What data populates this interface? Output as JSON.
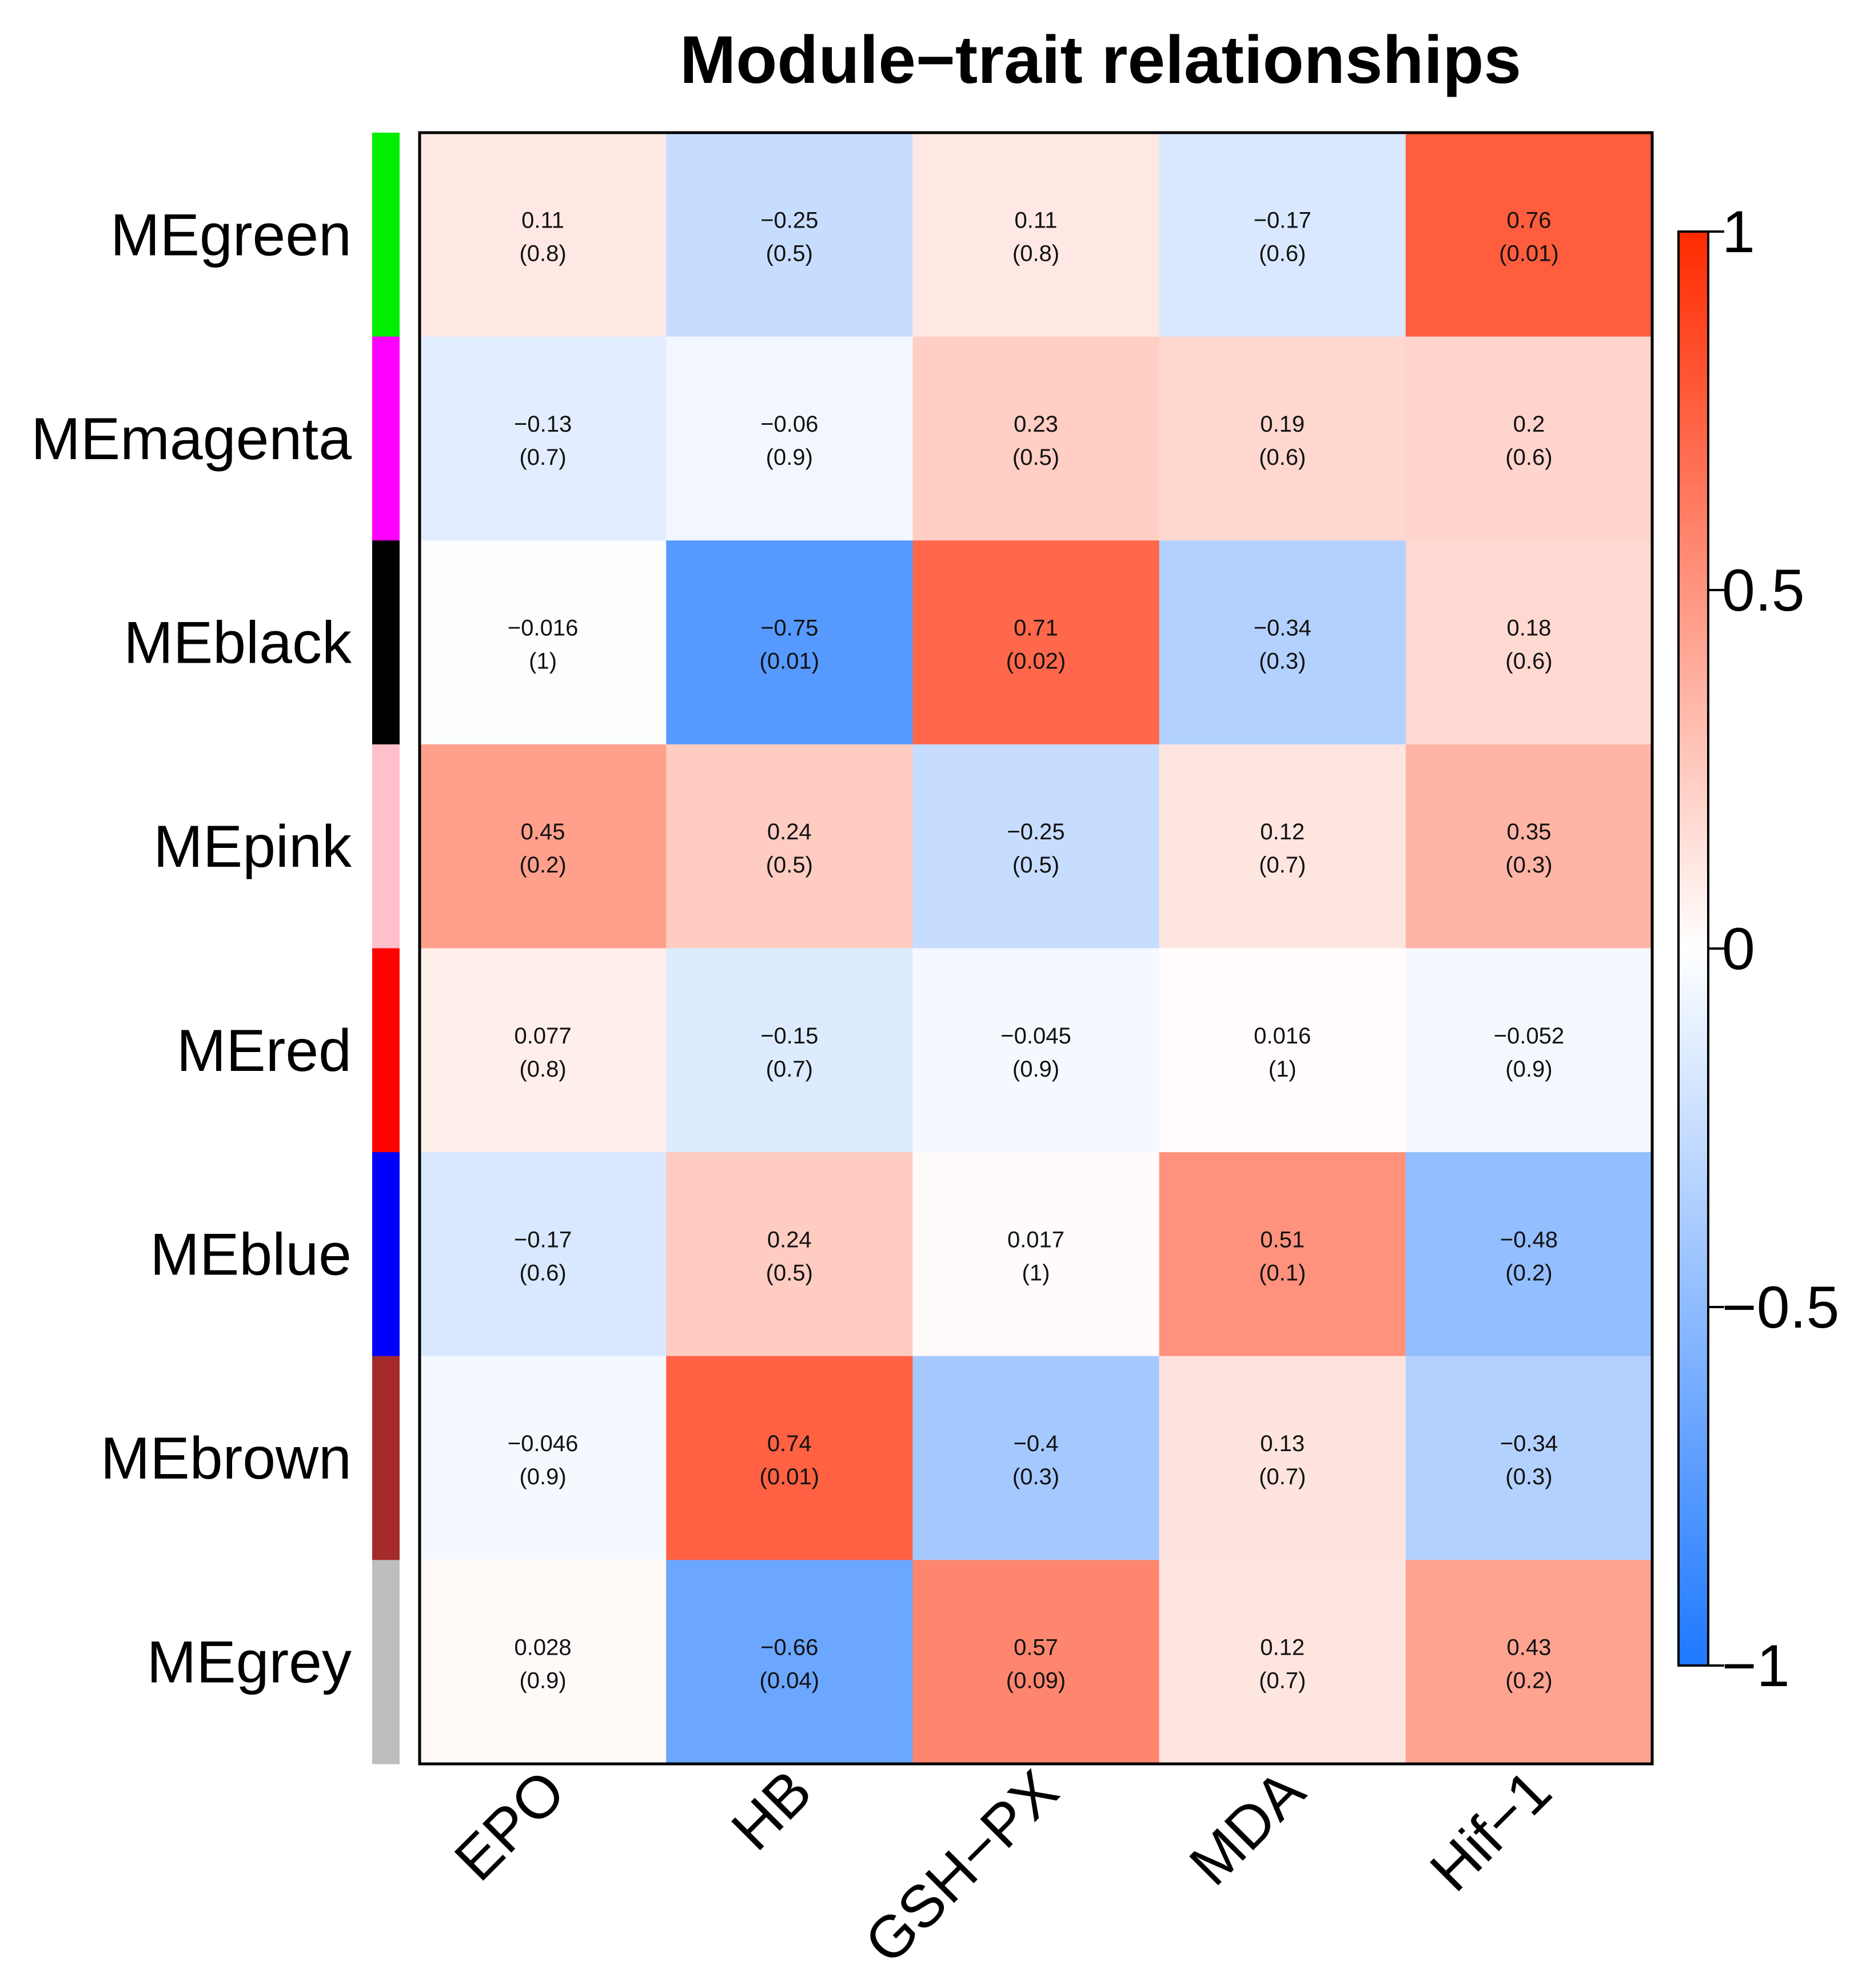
{
  "chart_data": {
    "type": "heatmap",
    "title": "Module−trait relationships",
    "rows": [
      "MEgreen",
      "MEmagenta",
      "MEblack",
      "MEpink",
      "MEred",
      "MEblue",
      "MEbrown",
      "MEgrey"
    ],
    "row_colors": [
      "#00ee00",
      "#ff00ff",
      "#000000",
      "#ffc0cb",
      "#ff0000",
      "#0000ff",
      "#a52a2a",
      "#bebebe"
    ],
    "columns": [
      "EPO",
      "HB",
      "GSH−PX",
      "MDA",
      "Hif−1"
    ],
    "correlation_labels": [
      [
        "0.11",
        "−0.25",
        "0.11",
        "−0.17",
        "0.76"
      ],
      [
        "−0.13",
        "−0.06",
        "0.23",
        "0.19",
        "0.2"
      ],
      [
        "−0.016",
        "−0.75",
        "0.71",
        "−0.34",
        "0.18"
      ],
      [
        "0.45",
        "0.24",
        "−0.25",
        "0.12",
        "0.35"
      ],
      [
        "0.077",
        "−0.15",
        "−0.045",
        "0.016",
        "−0.052"
      ],
      [
        "−0.17",
        "0.24",
        "0.017",
        "0.51",
        "−0.48"
      ],
      [
        "−0.046",
        "0.74",
        "−0.4",
        "0.13",
        "−0.34"
      ],
      [
        "0.028",
        "−0.66",
        "0.57",
        "0.12",
        "0.43"
      ]
    ],
    "pvalue_labels": [
      [
        "(0.8)",
        "(0.5)",
        "(0.8)",
        "(0.6)",
        "(0.01)"
      ],
      [
        "(0.7)",
        "(0.9)",
        "(0.5)",
        "(0.6)",
        "(0.6)"
      ],
      [
        "(1)",
        "(0.01)",
        "(0.02)",
        "(0.3)",
        "(0.6)"
      ],
      [
        "(0.2)",
        "(0.5)",
        "(0.5)",
        "(0.7)",
        "(0.3)"
      ],
      [
        "(0.8)",
        "(0.7)",
        "(0.9)",
        "(1)",
        "(0.9)"
      ],
      [
        "(0.6)",
        "(0.5)",
        "(1)",
        "(0.1)",
        "(0.2)"
      ],
      [
        "(0.9)",
        "(0.01)",
        "(0.3)",
        "(0.7)",
        "(0.3)"
      ],
      [
        "(0.9)",
        "(0.04)",
        "(0.09)",
        "(0.7)",
        "(0.2)"
      ]
    ],
    "colorbar": {
      "range": [
        -1,
        1
      ],
      "ticks": [
        1,
        0.5,
        0,
        -0.5,
        -1
      ],
      "tick_labels": [
        "1",
        "0.5",
        "0",
        "−0.5",
        "−1"
      ],
      "low_color": "#1e78ff",
      "mid_color": "#ffffff",
      "high_color": "#ff2a00"
    }
  }
}
